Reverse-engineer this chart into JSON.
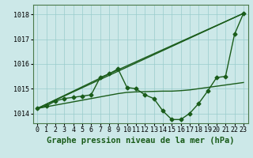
{
  "background_color": "#cce8e8",
  "grid_color": "#99cccc",
  "line_color": "#1a5c1a",
  "title": "Graphe pression niveau de la mer (hPa)",
  "ylim": [
    1013.6,
    1018.4
  ],
  "xlim": [
    -0.5,
    23.5
  ],
  "yticks": [
    1014,
    1015,
    1016,
    1017,
    1018
  ],
  "ytick_labels": [
    "1014",
    "1015",
    "1016",
    "1017",
    "1018"
  ],
  "xtick_labels": [
    "0",
    "1",
    "2",
    "3",
    "4",
    "5",
    "6",
    "7",
    "8",
    "9",
    "10",
    "11",
    "12",
    "13",
    "14",
    "15",
    "16",
    "17",
    "18",
    "19",
    "20",
    "21",
    "22",
    "23"
  ],
  "series": [
    {
      "x": [
        0,
        1,
        2,
        3,
        4,
        5,
        6,
        7,
        8,
        9,
        10,
        11,
        12,
        13,
        14,
        15,
        16,
        17,
        18,
        19,
        20,
        21,
        22,
        23
      ],
      "y": [
        1014.2,
        1014.3,
        1014.5,
        1014.6,
        1014.65,
        1014.7,
        1014.75,
        1015.45,
        1015.6,
        1015.8,
        1015.05,
        1015.0,
        1014.75,
        1014.6,
        1014.1,
        1013.75,
        1013.75,
        1014.0,
        1014.4,
        1014.9,
        1015.45,
        1015.5,
        1017.2,
        1018.05
      ],
      "marker": "D",
      "markersize": 2.5,
      "linewidth": 1.0,
      "zorder": 3
    },
    {
      "x": [
        0,
        23
      ],
      "y": [
        1014.2,
        1018.05
      ],
      "marker": null,
      "markersize": 0,
      "linewidth": 1.0,
      "zorder": 2
    },
    {
      "x": [
        0,
        8,
        23
      ],
      "y": [
        1014.2,
        1015.6,
        1018.05
      ],
      "marker": null,
      "markersize": 0,
      "linewidth": 1.0,
      "zorder": 2
    },
    {
      "x": [
        0,
        9,
        10,
        11,
        12,
        13,
        14,
        15,
        16,
        17,
        18,
        19,
        20,
        21,
        22,
        23
      ],
      "y": [
        1014.2,
        1014.8,
        1014.85,
        1014.87,
        1014.88,
        1014.89,
        1014.9,
        1014.9,
        1014.92,
        1014.95,
        1015.0,
        1015.05,
        1015.1,
        1015.15,
        1015.2,
        1015.25
      ],
      "marker": null,
      "markersize": 0,
      "linewidth": 1.0,
      "zorder": 2
    }
  ],
  "title_fontsize": 7.5,
  "tick_fontsize": 6.0
}
